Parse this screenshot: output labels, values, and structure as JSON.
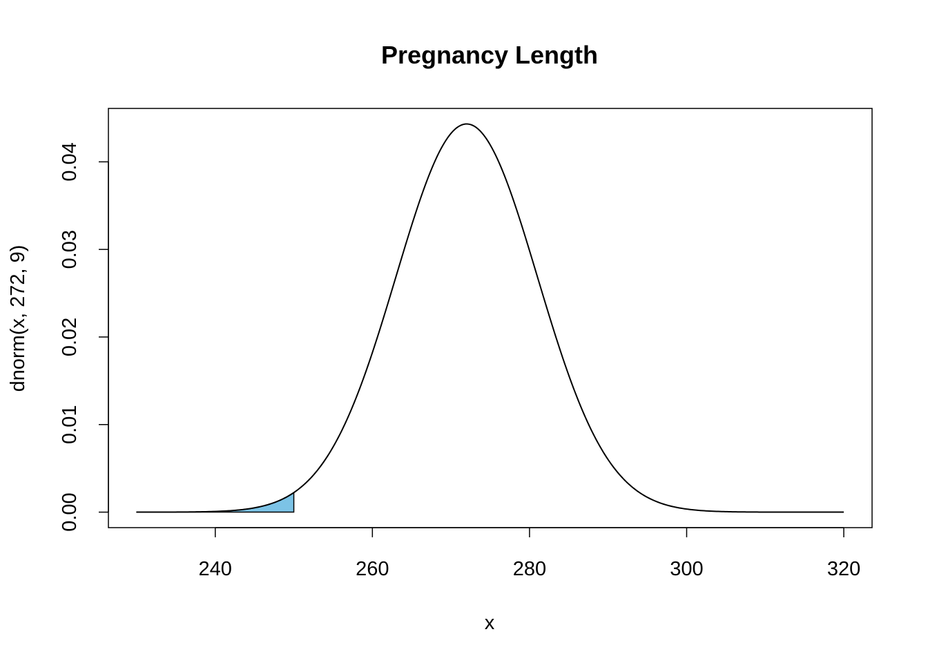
{
  "chart_data": {
    "type": "line",
    "title": "Pregnancy Length",
    "xlabel": "x",
    "ylabel": "dnorm(x, 272, 9)",
    "distribution": {
      "mean": 272,
      "sd": 9
    },
    "x_range": [
      230,
      320
    ],
    "xlim": [
      226.4,
      323.6
    ],
    "ylim": [
      -0.00177,
      0.0461
    ],
    "x_ticks": [
      240,
      260,
      280,
      300,
      320
    ],
    "x_tick_labels": [
      "240",
      "260",
      "280",
      "300",
      "320"
    ],
    "y_ticks": [
      0.0,
      0.01,
      0.02,
      0.03,
      0.04
    ],
    "y_tick_labels": [
      "0.00",
      "0.01",
      "0.02",
      "0.03",
      "0.04"
    ],
    "shaded_region": {
      "from": 230,
      "to": 250,
      "fill": "#7cc3e6"
    },
    "line_color": "#000000",
    "grid": false,
    "legend": "none"
  }
}
